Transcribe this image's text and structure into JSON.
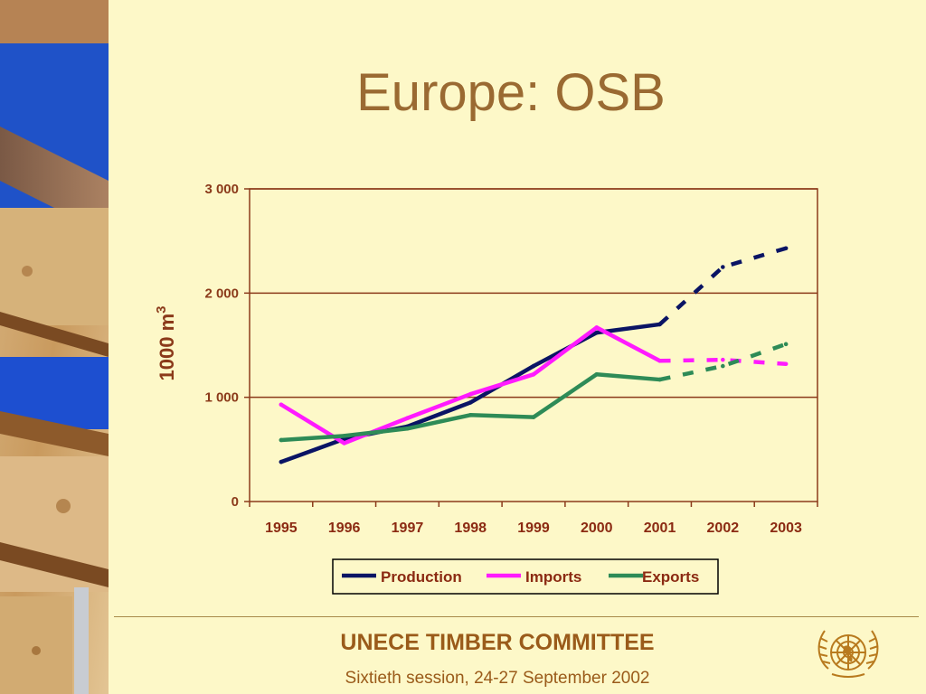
{
  "slide": {
    "title": "Europe: OSB"
  },
  "footer": {
    "title": "UNECE TIMBER COMMITTEE",
    "subtitle": "Sixtieth session, 24-27 September 2002"
  },
  "colors": {
    "background": "#fdf8c8",
    "title": "#9a6a32",
    "axis": "#8b3a1a",
    "production": "#0a1464",
    "imports": "#ff1aff",
    "exports": "#2e8b57"
  },
  "chart_data": {
    "type": "line",
    "ylabel": "1000 m",
    "ylabel_sup": "3",
    "categories": [
      "1995",
      "1996",
      "1997",
      "1998",
      "1999",
      "2000",
      "2001",
      "2002",
      "2003"
    ],
    "yticks": [
      0,
      1000,
      2000,
      3000
    ],
    "ytick_labels": [
      "0",
      "1 000",
      "2 000",
      "3 000"
    ],
    "ylim": [
      0,
      3000
    ],
    "grid": true,
    "legend_position": "bottom",
    "forecast_from": "2001",
    "series": [
      {
        "name": "Production",
        "color": "#0a1464",
        "values": [
          380,
          600,
          720,
          950,
          1300,
          1620,
          1700,
          2250,
          2430
        ]
      },
      {
        "name": "Imports",
        "color": "#ff1aff",
        "values": [
          930,
          560,
          800,
          1030,
          1220,
          1670,
          1350,
          1360,
          1320
        ]
      },
      {
        "name": "Exports",
        "color": "#2e8b57",
        "values": [
          590,
          630,
          700,
          830,
          810,
          1220,
          1170,
          1300,
          1510
        ]
      }
    ]
  }
}
